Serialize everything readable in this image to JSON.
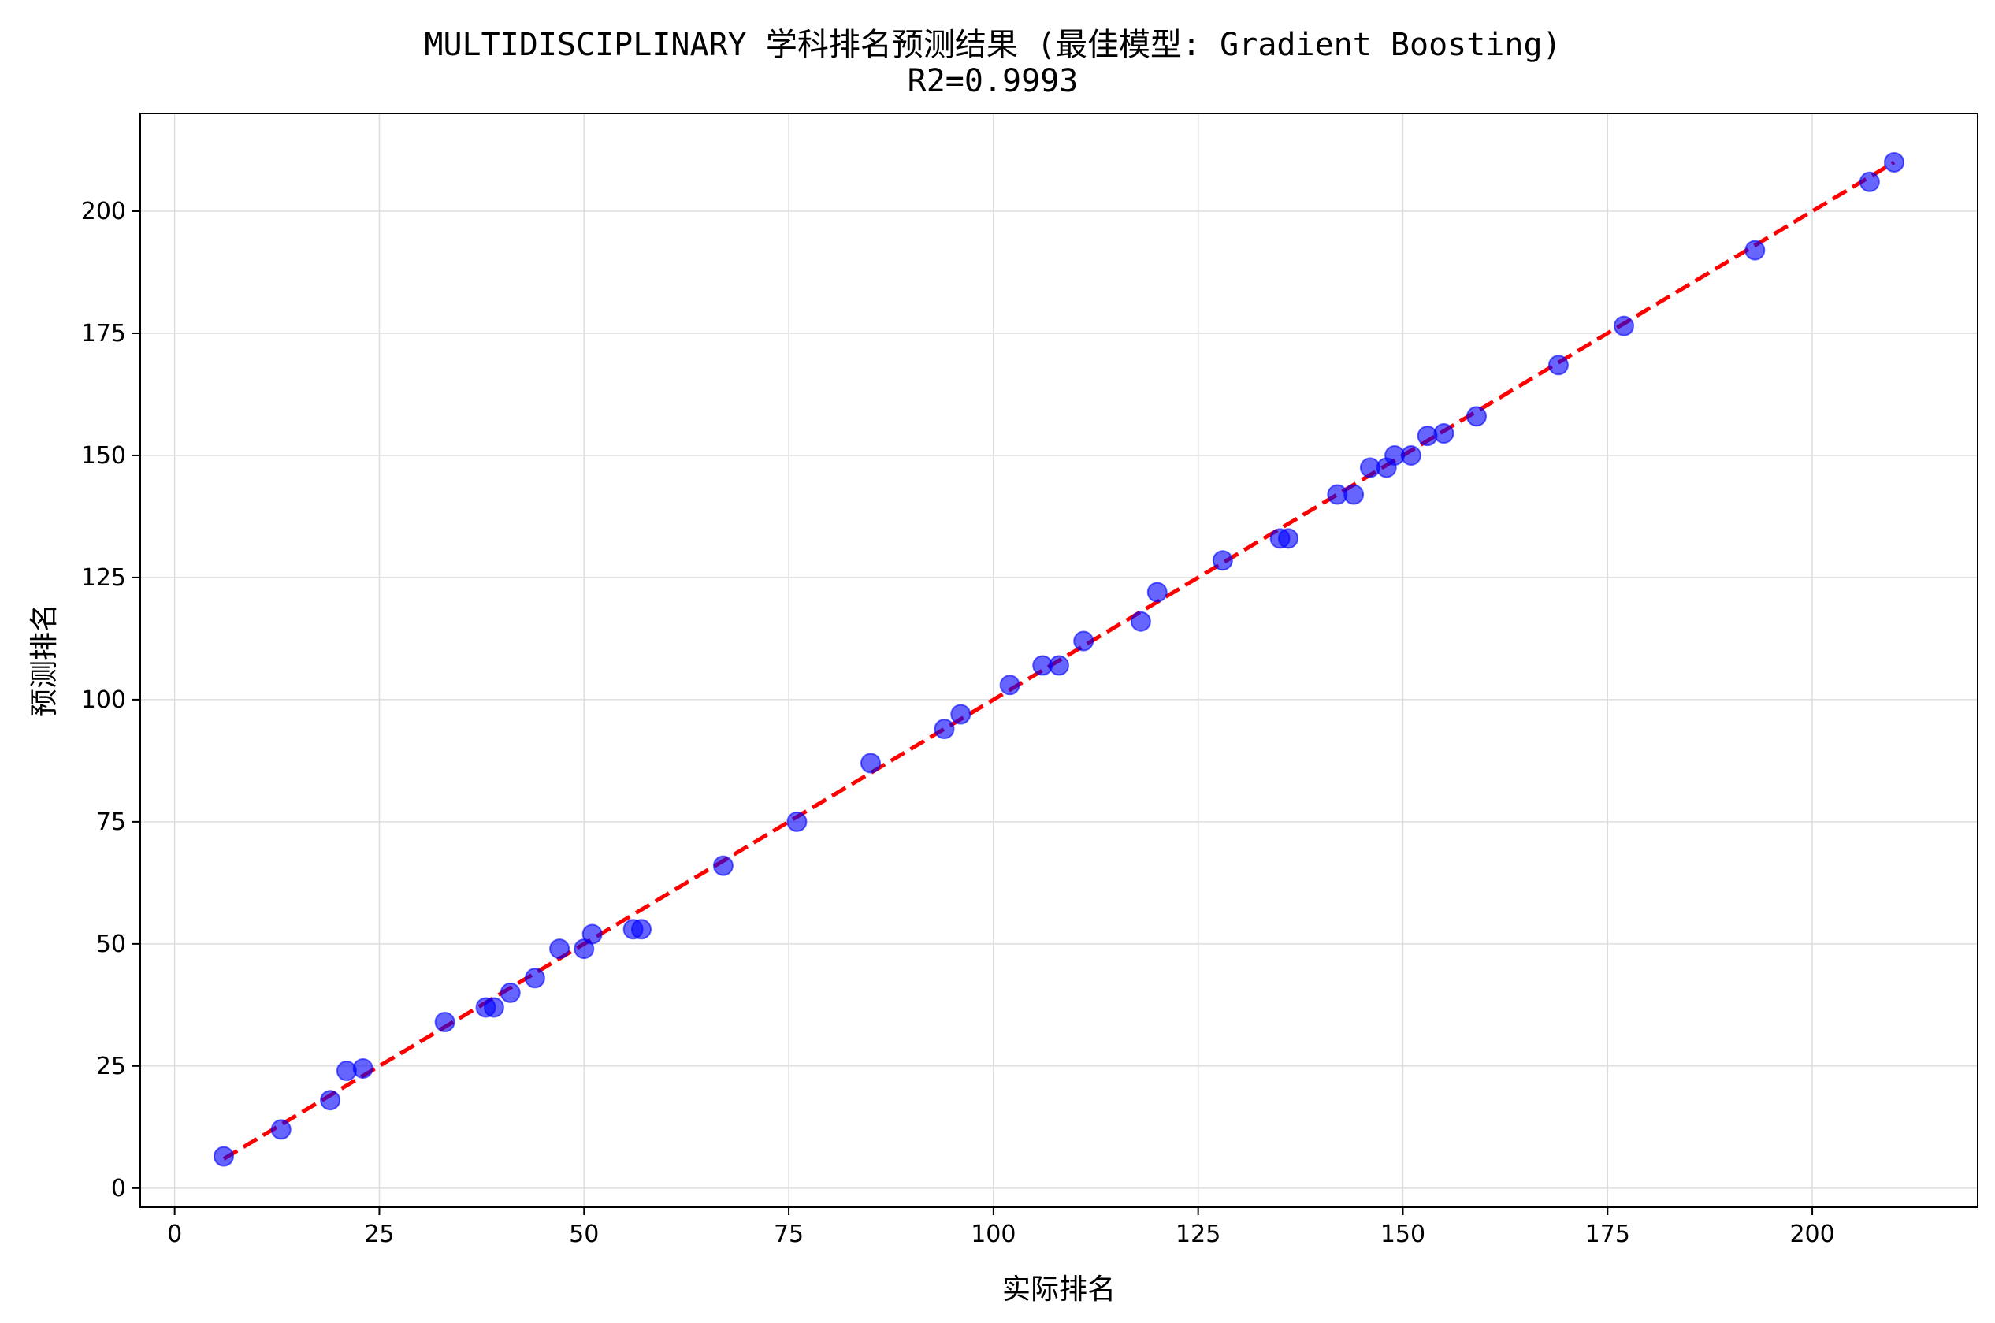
{
  "chart_data": {
    "type": "scatter",
    "title": "MULTIDISCIPLINARY 学科排名预测结果 (最佳模型: Gradient Boosting)",
    "subtitle": "R2=0.9993",
    "xlabel": "实际排名",
    "ylabel": "预测排名",
    "xlim": [
      -4.2,
      220.2
    ],
    "ylim": [
      -3.9,
      220.0
    ],
    "xticks": [
      0,
      25,
      50,
      75,
      100,
      125,
      150,
      175,
      200
    ],
    "yticks": [
      0,
      25,
      50,
      75,
      100,
      125,
      150,
      175,
      200
    ],
    "grid": true,
    "point_color": "#0000ff",
    "line_color": "#ff0000",
    "reference_line": {
      "style": "dashed",
      "from": [
        6,
        6
      ],
      "to": [
        210,
        210
      ]
    },
    "series": [
      {
        "x": [
          6,
          13,
          19,
          21,
          23,
          33,
          38,
          39,
          41,
          44,
          47,
          50,
          51,
          56,
          57,
          67,
          76,
          85,
          94,
          96,
          102,
          106,
          108,
          111,
          118,
          120,
          128,
          135,
          136,
          142,
          144,
          146,
          148,
          149,
          151,
          153,
          155,
          159,
          169,
          177,
          193,
          207,
          210
        ],
        "y": [
          6.5,
          12,
          18,
          24,
          24.5,
          34,
          37,
          37,
          40,
          43,
          49,
          49,
          52,
          53,
          53,
          66,
          75,
          87,
          94,
          97,
          103,
          107,
          107,
          112,
          116,
          122,
          128.5,
          133,
          133,
          142,
          142,
          147.5,
          147.5,
          150,
          150,
          154,
          154.5,
          158,
          168.5,
          176.5,
          192,
          206,
          210
        ]
      }
    ]
  }
}
